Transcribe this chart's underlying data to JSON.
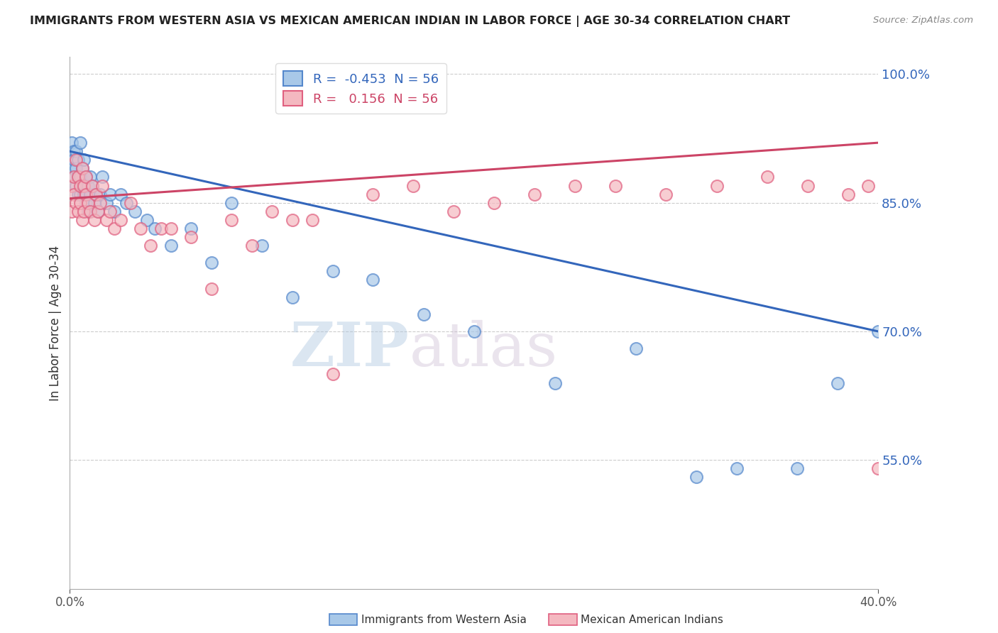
{
  "title": "IMMIGRANTS FROM WESTERN ASIA VS MEXICAN AMERICAN INDIAN IN LABOR FORCE | AGE 30-34 CORRELATION CHART",
  "source": "Source: ZipAtlas.com",
  "ylabel": "In Labor Force | Age 30-34",
  "xlim": [
    0.0,
    0.4
  ],
  "ylim": [
    0.4,
    1.02
  ],
  "yticks": [
    0.55,
    0.7,
    0.85,
    1.0
  ],
  "ytick_labels": [
    "55.0%",
    "70.0%",
    "85.0%",
    "100.0%"
  ],
  "xtick_labels": [
    "0.0%",
    "40.0%"
  ],
  "xtick_pos": [
    0.0,
    0.4
  ],
  "blue_R": -0.453,
  "pink_R": 0.156,
  "N": 56,
  "blue_color": "#a8c8e8",
  "pink_color": "#f4b8c0",
  "blue_edge_color": "#5588cc",
  "pink_edge_color": "#e06080",
  "blue_line_color": "#3366bb",
  "pink_line_color": "#cc4466",
  "legend1_label": "Immigrants from Western Asia",
  "legend2_label": "Mexican American Indians",
  "watermark_zip": "ZIP",
  "watermark_atlas": "atlas",
  "blue_x": [
    0.001,
    0.001,
    0.002,
    0.002,
    0.002,
    0.003,
    0.003,
    0.003,
    0.004,
    0.004,
    0.004,
    0.005,
    0.005,
    0.005,
    0.006,
    0.006,
    0.007,
    0.007,
    0.008,
    0.008,
    0.009,
    0.009,
    0.01,
    0.01,
    0.011,
    0.012,
    0.013,
    0.014,
    0.015,
    0.016,
    0.018,
    0.02,
    0.022,
    0.025,
    0.028,
    0.032,
    0.038,
    0.042,
    0.05,
    0.06,
    0.07,
    0.08,
    0.095,
    0.11,
    0.13,
    0.15,
    0.175,
    0.2,
    0.24,
    0.28,
    0.31,
    0.33,
    0.36,
    0.38,
    0.4,
    0.42
  ],
  "blue_y": [
    0.92,
    0.89,
    0.91,
    0.88,
    0.9,
    0.89,
    0.91,
    0.87,
    0.88,
    0.9,
    0.86,
    0.92,
    0.88,
    0.86,
    0.89,
    0.87,
    0.9,
    0.86,
    0.88,
    0.85,
    0.87,
    0.84,
    0.88,
    0.86,
    0.87,
    0.85,
    0.86,
    0.84,
    0.86,
    0.88,
    0.85,
    0.86,
    0.84,
    0.86,
    0.85,
    0.84,
    0.83,
    0.82,
    0.8,
    0.82,
    0.78,
    0.85,
    0.8,
    0.74,
    0.77,
    0.76,
    0.72,
    0.7,
    0.64,
    0.68,
    0.53,
    0.54,
    0.54,
    0.64,
    0.7,
    0.68
  ],
  "pink_x": [
    0.001,
    0.001,
    0.002,
    0.002,
    0.003,
    0.003,
    0.004,
    0.004,
    0.005,
    0.005,
    0.006,
    0.006,
    0.007,
    0.007,
    0.008,
    0.008,
    0.009,
    0.01,
    0.011,
    0.012,
    0.013,
    0.014,
    0.015,
    0.016,
    0.018,
    0.02,
    0.022,
    0.025,
    0.03,
    0.035,
    0.04,
    0.045,
    0.05,
    0.06,
    0.07,
    0.08,
    0.09,
    0.1,
    0.11,
    0.12,
    0.13,
    0.15,
    0.17,
    0.19,
    0.21,
    0.23,
    0.25,
    0.27,
    0.295,
    0.32,
    0.345,
    0.365,
    0.385,
    0.395,
    0.4,
    0.405
  ],
  "pink_y": [
    0.87,
    0.84,
    0.86,
    0.88,
    0.9,
    0.85,
    0.88,
    0.84,
    0.87,
    0.85,
    0.89,
    0.83,
    0.87,
    0.84,
    0.86,
    0.88,
    0.85,
    0.84,
    0.87,
    0.83,
    0.86,
    0.84,
    0.85,
    0.87,
    0.83,
    0.84,
    0.82,
    0.83,
    0.85,
    0.82,
    0.8,
    0.82,
    0.82,
    0.81,
    0.75,
    0.83,
    0.8,
    0.84,
    0.83,
    0.83,
    0.65,
    0.86,
    0.87,
    0.84,
    0.85,
    0.86,
    0.87,
    0.87,
    0.86,
    0.87,
    0.88,
    0.87,
    0.86,
    0.87,
    0.54,
    0.54
  ]
}
